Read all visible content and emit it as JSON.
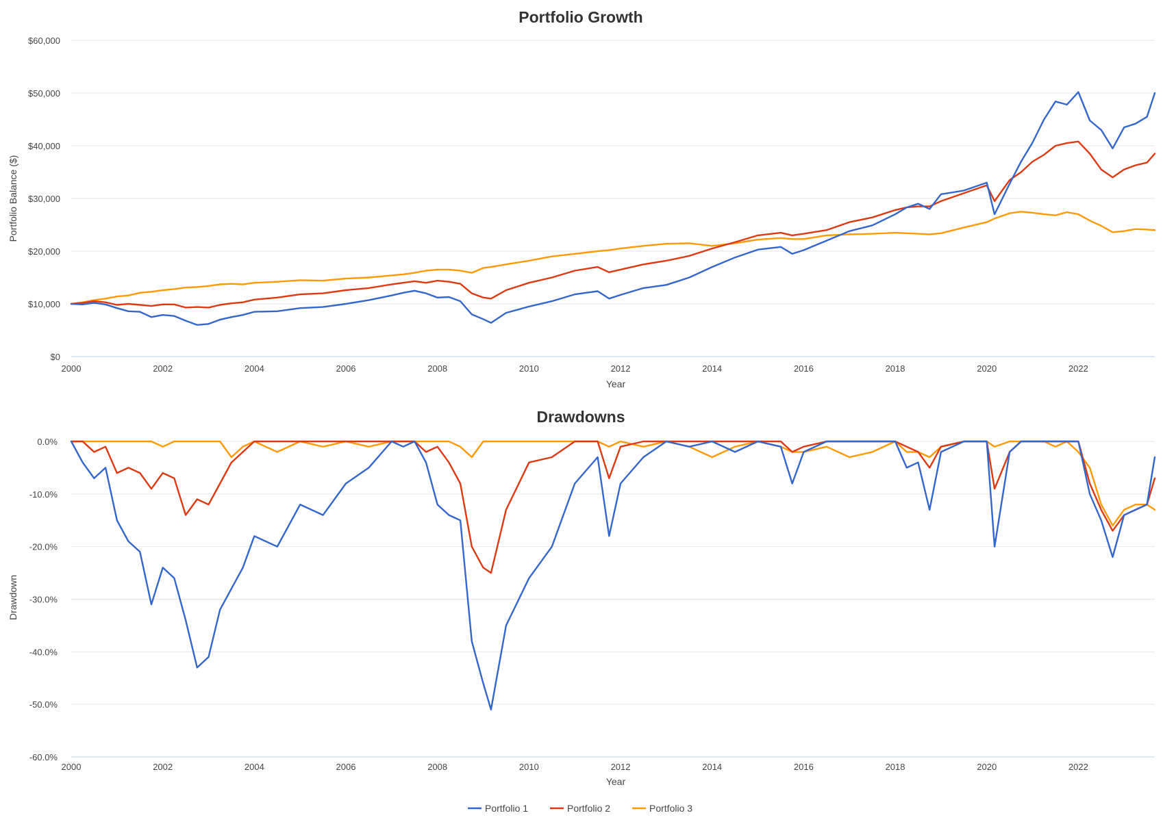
{
  "colors": {
    "portfolio1": "#3366cc",
    "portfolio2": "#dc3912",
    "portfolio3": "#ff9900"
  },
  "legend": [
    "Portfolio 1",
    "Portfolio 2",
    "Portfolio 3"
  ],
  "chart_data": [
    {
      "type": "line",
      "title": "Portfolio Growth",
      "xlabel": "Year",
      "ylabel": "Portfolio Balance ($)",
      "xlim": [
        2000,
        2023.67
      ],
      "ylim": [
        0,
        60000
      ],
      "x_ticks": [
        "2000",
        "2002",
        "2004",
        "2006",
        "2008",
        "2010",
        "2012",
        "2014",
        "2016",
        "2018",
        "2020",
        "2022"
      ],
      "y_ticks": [
        "$0",
        "$10,000",
        "$20,000",
        "$30,000",
        "$40,000",
        "$50,000",
        "$60,000"
      ],
      "grid": true,
      "series": [
        {
          "name": "Portfolio 1",
          "color": "#3366cc",
          "x": [
            2000,
            2000.25,
            2000.5,
            2000.75,
            2001,
            2001.25,
            2001.5,
            2001.75,
            2002,
            2002.25,
            2002.5,
            2002.75,
            2003,
            2003.25,
            2003.5,
            2003.75,
            2004,
            2004.5,
            2005,
            2005.5,
            2006,
            2006.5,
            2007,
            2007.25,
            2007.5,
            2007.75,
            2008,
            2008.25,
            2008.5,
            2008.75,
            2009,
            2009.17,
            2009.5,
            2010,
            2010.5,
            2011,
            2011.5,
            2011.75,
            2012,
            2012.5,
            2013,
            2013.5,
            2014,
            2014.5,
            2015,
            2015.5,
            2015.75,
            2016,
            2016.5,
            2017,
            2017.5,
            2018,
            2018.25,
            2018.5,
            2018.75,
            2019,
            2019.5,
            2020,
            2020.17,
            2020.5,
            2020.75,
            2021,
            2021.25,
            2021.5,
            2021.75,
            2022,
            2022.25,
            2022.5,
            2022.75,
            2023,
            2023.25,
            2023.5,
            2023.67
          ],
          "y": [
            10000,
            9900,
            10200,
            9900,
            9200,
            8600,
            8500,
            7500,
            7900,
            7700,
            6800,
            6000,
            6200,
            7000,
            7500,
            7900,
            8500,
            8600,
            9200,
            9400,
            10000,
            10700,
            11600,
            12100,
            12500,
            12000,
            11200,
            11300,
            10500,
            8000,
            7100,
            6400,
            8300,
            9500,
            10500,
            11800,
            12400,
            11000,
            11700,
            13000,
            13600,
            15000,
            17000,
            18800,
            20300,
            20800,
            19500,
            20200,
            22000,
            23800,
            24900,
            27000,
            28300,
            29000,
            28000,
            30800,
            31500,
            33000,
            27000,
            32800,
            37000,
            40600,
            45000,
            48400,
            47800,
            50200,
            44800,
            43000,
            39500,
            43500,
            44200,
            45500,
            50000
          ]
        },
        {
          "name": "Portfolio 2",
          "color": "#dc3912",
          "x": [
            2000,
            2000.25,
            2000.5,
            2000.75,
            2001,
            2001.25,
            2001.5,
            2001.75,
            2002,
            2002.25,
            2002.5,
            2002.75,
            2003,
            2003.25,
            2003.5,
            2003.75,
            2004,
            2004.5,
            2005,
            2005.5,
            2006,
            2006.5,
            2007,
            2007.25,
            2007.5,
            2007.75,
            2008,
            2008.25,
            2008.5,
            2008.75,
            2009,
            2009.17,
            2009.5,
            2010,
            2010.5,
            2011,
            2011.5,
            2011.75,
            2012,
            2012.5,
            2013,
            2013.5,
            2014,
            2014.5,
            2015,
            2015.5,
            2015.75,
            2016,
            2016.5,
            2017,
            2017.5,
            2018,
            2018.25,
            2018.5,
            2018.75,
            2019,
            2019.5,
            2020,
            2020.17,
            2020.5,
            2020.75,
            2021,
            2021.25,
            2021.5,
            2021.75,
            2022,
            2022.25,
            2022.5,
            2022.75,
            2023,
            2023.25,
            2023.5,
            2023.67
          ],
          "y": [
            10000,
            10200,
            10500,
            10300,
            9800,
            10000,
            9800,
            9600,
            9900,
            9900,
            9300,
            9400,
            9300,
            9800,
            10100,
            10300,
            10800,
            11200,
            11800,
            12000,
            12600,
            13000,
            13700,
            14000,
            14300,
            14000,
            14400,
            14200,
            13800,
            12000,
            11200,
            11000,
            12600,
            14000,
            15000,
            16300,
            17000,
            16000,
            16500,
            17500,
            18200,
            19100,
            20500,
            21700,
            23000,
            23500,
            23000,
            23300,
            24000,
            25500,
            26400,
            27800,
            28300,
            28500,
            28500,
            29500,
            31000,
            32500,
            29500,
            33500,
            35000,
            37000,
            38300,
            40000,
            40500,
            40800,
            38500,
            35500,
            34000,
            35500,
            36300,
            36800,
            38500
          ]
        },
        {
          "name": "Portfolio 3",
          "color": "#ff9900",
          "x": [
            2000,
            2000.25,
            2000.5,
            2000.75,
            2001,
            2001.25,
            2001.5,
            2001.75,
            2002,
            2002.25,
            2002.5,
            2002.75,
            2003,
            2003.25,
            2003.5,
            2003.75,
            2004,
            2004.5,
            2005,
            2005.5,
            2006,
            2006.5,
            2007,
            2007.25,
            2007.5,
            2007.75,
            2008,
            2008.25,
            2008.5,
            2008.75,
            2009,
            2009.17,
            2009.5,
            2010,
            2010.5,
            2011,
            2011.5,
            2011.75,
            2012,
            2012.5,
            2013,
            2013.5,
            2014,
            2014.5,
            2015,
            2015.5,
            2015.75,
            2016,
            2016.5,
            2017,
            2017.5,
            2018,
            2018.25,
            2018.5,
            2018.75,
            2019,
            2019.5,
            2020,
            2020.17,
            2020.5,
            2020.75,
            2021,
            2021.25,
            2021.5,
            2021.75,
            2022,
            2022.25,
            2022.5,
            2022.75,
            2023,
            2023.25,
            2023.5,
            2023.67
          ],
          "y": [
            10000,
            10300,
            10700,
            11000,
            11400,
            11600,
            12100,
            12300,
            12600,
            12800,
            13100,
            13200,
            13400,
            13700,
            13800,
            13700,
            14000,
            14200,
            14500,
            14400,
            14800,
            15000,
            15400,
            15600,
            15900,
            16300,
            16500,
            16500,
            16300,
            15900,
            16800,
            17000,
            17500,
            18200,
            19000,
            19500,
            20000,
            20200,
            20500,
            21000,
            21400,
            21500,
            21000,
            21500,
            22200,
            22500,
            22300,
            22300,
            23000,
            23200,
            23300,
            23500,
            23400,
            23300,
            23200,
            23400,
            24500,
            25500,
            26200,
            27200,
            27500,
            27300,
            27000,
            26800,
            27400,
            27000,
            25800,
            24800,
            23600,
            23800,
            24200,
            24100,
            24000
          ]
        }
      ]
    },
    {
      "type": "line",
      "title": "Drawdowns",
      "xlabel": "Year",
      "ylabel": "Drawdown",
      "xlim": [
        2000,
        2023.67
      ],
      "ylim": [
        -60,
        0
      ],
      "x_ticks": [
        "2000",
        "2002",
        "2004",
        "2006",
        "2008",
        "2010",
        "2012",
        "2014",
        "2016",
        "2018",
        "2020",
        "2022"
      ],
      "y_ticks": [
        "0.0%",
        "-10.0%",
        "-20.0%",
        "-30.0%",
        "-40.0%",
        "-50.0%",
        "-60.0%"
      ],
      "grid": true,
      "series": [
        {
          "name": "Portfolio 1",
          "color": "#3366cc",
          "x": [
            2000,
            2000.25,
            2000.5,
            2000.75,
            2001,
            2001.25,
            2001.5,
            2001.75,
            2002,
            2002.25,
            2002.5,
            2002.75,
            2003,
            2003.25,
            2003.5,
            2003.75,
            2004,
            2004.5,
            2005,
            2005.5,
            2006,
            2006.5,
            2007,
            2007.25,
            2007.5,
            2007.75,
            2008,
            2008.25,
            2008.5,
            2008.75,
            2009,
            2009.17,
            2009.5,
            2010,
            2010.5,
            2011,
            2011.5,
            2011.75,
            2012,
            2012.5,
            2013,
            2013.5,
            2014,
            2014.5,
            2015,
            2015.5,
            2015.75,
            2016,
            2016.5,
            2017,
            2017.5,
            2018,
            2018.25,
            2018.5,
            2018.75,
            2019,
            2019.5,
            2020,
            2020.17,
            2020.5,
            2020.75,
            2021,
            2021.25,
            2021.5,
            2021.75,
            2022,
            2022.25,
            2022.5,
            2022.75,
            2023,
            2023.25,
            2023.5,
            2023.67
          ],
          "y": [
            0,
            -4,
            -7,
            -5,
            -15,
            -19,
            -21,
            -31,
            -24,
            -26,
            -34,
            -43,
            -41,
            -32,
            -28,
            -24,
            -18,
            -20,
            -12,
            -14,
            -8,
            -5,
            0,
            -1,
            0,
            -4,
            -12,
            -14,
            -15,
            -38,
            -46,
            -51,
            -35,
            -26,
            -20,
            -8,
            -3,
            -18,
            -8,
            -3,
            0,
            -1,
            0,
            -2,
            0,
            -1,
            -8,
            -2,
            0,
            0,
            0,
            0,
            -5,
            -4,
            -13,
            -2,
            0,
            0,
            -20,
            -2,
            0,
            0,
            0,
            0,
            0,
            0,
            -10,
            -15,
            -22,
            -14,
            -13,
            -12,
            -3
          ]
        },
        {
          "name": "Portfolio 2",
          "color": "#dc3912",
          "x": [
            2000,
            2000.25,
            2000.5,
            2000.75,
            2001,
            2001.25,
            2001.5,
            2001.75,
            2002,
            2002.25,
            2002.5,
            2002.75,
            2003,
            2003.25,
            2003.5,
            2003.75,
            2004,
            2004.5,
            2005,
            2005.5,
            2006,
            2006.5,
            2007,
            2007.25,
            2007.5,
            2007.75,
            2008,
            2008.25,
            2008.5,
            2008.75,
            2009,
            2009.17,
            2009.5,
            2010,
            2010.5,
            2011,
            2011.5,
            2011.75,
            2012,
            2012.5,
            2013,
            2013.5,
            2014,
            2014.5,
            2015,
            2015.5,
            2015.75,
            2016,
            2016.5,
            2017,
            2017.5,
            2018,
            2018.25,
            2018.5,
            2018.75,
            2019,
            2019.5,
            2020,
            2020.17,
            2020.5,
            2020.75,
            2021,
            2021.25,
            2021.5,
            2021.75,
            2022,
            2022.25,
            2022.5,
            2022.75,
            2023,
            2023.25,
            2023.5,
            2023.67
          ],
          "y": [
            0,
            0,
            -2,
            -1,
            -6,
            -5,
            -6,
            -9,
            -6,
            -7,
            -14,
            -11,
            -12,
            -8,
            -4,
            -2,
            0,
            0,
            0,
            0,
            0,
            0,
            0,
            0,
            0,
            -2,
            -1,
            -4,
            -8,
            -20,
            -24,
            -25,
            -13,
            -4,
            -3,
            0,
            0,
            -7,
            -1,
            0,
            0,
            0,
            0,
            0,
            0,
            0,
            -2,
            -1,
            0,
            0,
            0,
            0,
            -1,
            -2,
            -5,
            -1,
            0,
            0,
            -9,
            -2,
            0,
            0,
            0,
            0,
            0,
            0,
            -8,
            -13,
            -17,
            -14,
            -13,
            -12,
            -7
          ]
        },
        {
          "name": "Portfolio 3",
          "color": "#ff9900",
          "x": [
            2000,
            2000.25,
            2000.5,
            2000.75,
            2001,
            2001.25,
            2001.5,
            2001.75,
            2002,
            2002.25,
            2002.5,
            2002.75,
            2003,
            2003.25,
            2003.5,
            2003.75,
            2004,
            2004.5,
            2005,
            2005.5,
            2006,
            2006.5,
            2007,
            2007.25,
            2007.5,
            2007.75,
            2008,
            2008.25,
            2008.5,
            2008.75,
            2009,
            2009.17,
            2009.5,
            2010,
            2010.5,
            2011,
            2011.5,
            2011.75,
            2012,
            2012.5,
            2013,
            2013.5,
            2014,
            2014.5,
            2015,
            2015.5,
            2015.75,
            2016,
            2016.5,
            2017,
            2017.5,
            2018,
            2018.25,
            2018.5,
            2018.75,
            2019,
            2019.5,
            2020,
            2020.17,
            2020.5,
            2020.75,
            2021,
            2021.25,
            2021.5,
            2021.75,
            2022,
            2022.25,
            2022.5,
            2022.75,
            2023,
            2023.25,
            2023.5,
            2023.67
          ],
          "y": [
            0,
            0,
            0,
            0,
            0,
            0,
            0,
            0,
            -1,
            0,
            0,
            0,
            0,
            0,
            -3,
            -1,
            0,
            -2,
            0,
            -1,
            0,
            -1,
            0,
            0,
            0,
            0,
            0,
            0,
            -1,
            -3,
            0,
            0,
            0,
            0,
            0,
            0,
            0,
            -1,
            0,
            -1,
            0,
            -1,
            -3,
            -1,
            0,
            -1,
            -2,
            -2,
            -1,
            -3,
            -2,
            0,
            -2,
            -2,
            -3,
            -1,
            0,
            0,
            -1,
            0,
            0,
            0,
            0,
            -1,
            0,
            -2,
            -5,
            -12,
            -16,
            -13,
            -12,
            -12,
            -13
          ]
        }
      ]
    }
  ]
}
